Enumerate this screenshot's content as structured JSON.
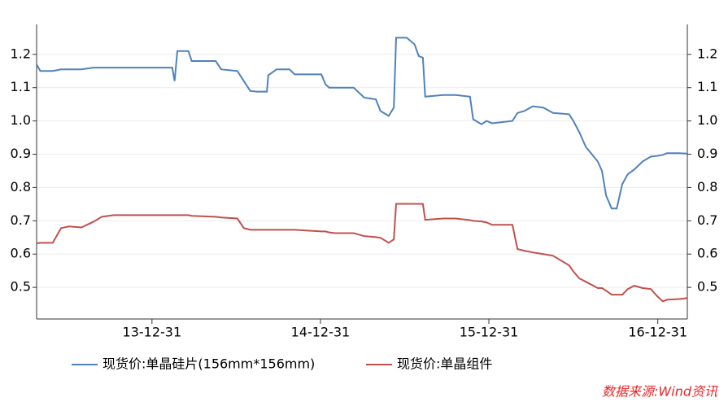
{
  "chart_data": {
    "type": "line",
    "x": [
      "13-04-25",
      "13-05-03",
      "13-05-30",
      "13-06-17",
      "13-07-04",
      "13-07-31",
      "13-08-26",
      "13-09-13",
      "13-10-09",
      "14-02-13",
      "14-02-18",
      "14-02-24",
      "14-03-20",
      "14-03-27",
      "14-05-18",
      "14-05-30",
      "14-07-04",
      "14-07-18",
      "14-08-01",
      "14-08-15",
      "14-09-06",
      "14-09-09",
      "14-09-27",
      "14-10-25",
      "14-11-05",
      "15-01-02",
      "15-01-11",
      "15-01-19",
      "15-02-01",
      "15-03-13",
      "15-04-05",
      "15-04-30",
      "15-05-10",
      "15-05-28",
      "15-06-08",
      "15-06-13",
      "15-07-06",
      "15-07-23",
      "15-08-01",
      "15-08-10",
      "15-08-15",
      "15-09-23",
      "15-10-20",
      "15-11-20",
      "15-11-27",
      "15-12-15",
      "15-12-26",
      "16-01-07",
      "16-02-20",
      "16-03-02",
      "16-03-17",
      "16-04-04",
      "16-04-27",
      "16-05-18",
      "16-06-22",
      "16-07-01",
      "16-07-14",
      "16-07-28",
      "16-08-23",
      "16-09-01",
      "16-09-10",
      "16-09-22",
      "16-10-03",
      "16-10-15",
      "16-10-27",
      "16-11-10",
      "16-11-28",
      "16-12-16",
      "16-12-30",
      "17-01-11",
      "17-01-20",
      "17-02-15",
      "17-03-05"
    ],
    "series": [
      {
        "name": "现货价:单晶硅片(156mm*156mm)",
        "color": "#4f81bd",
        "values": [
          1.17,
          1.15,
          1.15,
          1.155,
          1.155,
          1.155,
          1.16,
          1.16,
          1.16,
          1.16,
          1.12,
          1.21,
          1.21,
          1.18,
          1.18,
          1.155,
          1.15,
          1.12,
          1.09,
          1.088,
          1.088,
          1.137,
          1.155,
          1.155,
          1.14,
          1.14,
          1.11,
          1.1,
          1.1,
          1.1,
          1.07,
          1.065,
          1.03,
          1.015,
          1.04,
          1.25,
          1.25,
          1.23,
          1.195,
          1.19,
          1.073,
          1.078,
          1.078,
          1.073,
          1.005,
          0.99,
          1.0,
          0.993,
          1.0,
          1.024,
          1.03,
          1.044,
          1.04,
          1.024,
          1.02,
          1.0,
          0.966,
          0.922,
          0.878,
          0.85,
          0.776,
          0.737,
          0.737,
          0.81,
          0.84,
          0.854,
          0.878,
          0.893,
          0.895,
          0.898,
          0.903,
          0.903,
          0.902
        ]
      },
      {
        "name": "现货价:单晶组件",
        "color": "#c0504d",
        "values": [
          0.632,
          0.634,
          0.634,
          0.678,
          0.683,
          0.68,
          0.697,
          0.712,
          0.717,
          0.717,
          0.717,
          0.717,
          0.717,
          0.715,
          0.712,
          0.71,
          0.707,
          0.678,
          0.673,
          0.673,
          0.673,
          0.673,
          0.673,
          0.673,
          0.673,
          0.668,
          0.668,
          0.665,
          0.663,
          0.663,
          0.654,
          0.651,
          0.649,
          0.634,
          0.644,
          0.751,
          0.751,
          0.751,
          0.751,
          0.751,
          0.703,
          0.707,
          0.707,
          0.702,
          0.7,
          0.698,
          0.695,
          0.688,
          0.688,
          0.615,
          0.61,
          0.605,
          0.6,
          0.595,
          0.566,
          0.548,
          0.527,
          0.517,
          0.498,
          0.498,
          0.49,
          0.478,
          0.478,
          0.478,
          0.495,
          0.505,
          0.498,
          0.495,
          0.473,
          0.458,
          0.463,
          0.465,
          0.468
        ]
      }
    ],
    "xlim": [
      "13-04-25",
      "17-03-05"
    ],
    "xticks": [
      "13-12-31",
      "14-12-31",
      "15-12-31",
      "16-12-31"
    ],
    "ylim": [
      0.405,
      1.29
    ],
    "yticks": [
      0.5,
      0.6,
      0.7,
      0.8,
      0.9,
      {
        "value": 1,
        "label": "1.0"
      },
      1.1,
      1.2
    ],
    "y2lim": [
      0.405,
      1.29
    ],
    "y2ticks": [
      0.5,
      0.6,
      0.7,
      0.8,
      0.9,
      {
        "value": 1,
        "label": "1.0"
      },
      1.1,
      1.2
    ],
    "grid": true,
    "legend": "bottom",
    "source": "数据来源:Wind资讯"
  }
}
